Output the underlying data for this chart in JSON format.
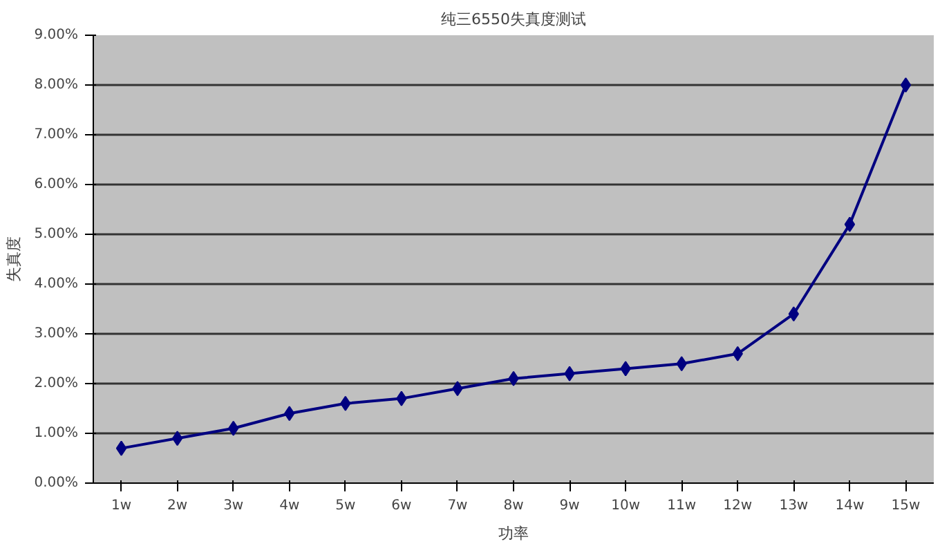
{
  "chart_data": {
    "type": "line",
    "title": "纯三6550失真度测试",
    "xlabel": "功率",
    "ylabel": "失真度",
    "categories": [
      "1w",
      "2w",
      "3w",
      "4w",
      "5w",
      "6w",
      "7w",
      "8w",
      "9w",
      "10w",
      "11w",
      "12w",
      "13w",
      "14w",
      "15w"
    ],
    "series": [
      {
        "color": "#000080",
        "values": [
          0.7,
          0.9,
          1.1,
          1.4,
          1.6,
          1.7,
          1.9,
          2.1,
          2.2,
          2.3,
          2.4,
          2.6,
          3.4,
          5.2,
          8.0
        ]
      }
    ],
    "ylim": [
      0,
      9
    ],
    "yticks": [
      {
        "value": 0,
        "label": "0.00%"
      },
      {
        "value": 1,
        "label": "1.00%"
      },
      {
        "value": 2,
        "label": "2.00%"
      },
      {
        "value": 3,
        "label": "3.00%"
      },
      {
        "value": 4,
        "label": "4.00%"
      },
      {
        "value": 5,
        "label": "5.00%"
      },
      {
        "value": 6,
        "label": "6.00%"
      },
      {
        "value": 7,
        "label": "7.00%"
      },
      {
        "value": 8,
        "label": "8.00%"
      },
      {
        "value": 9,
        "label": "9.00%"
      }
    ],
    "grid": "y",
    "marker": "diamond",
    "line_style": "solid"
  }
}
